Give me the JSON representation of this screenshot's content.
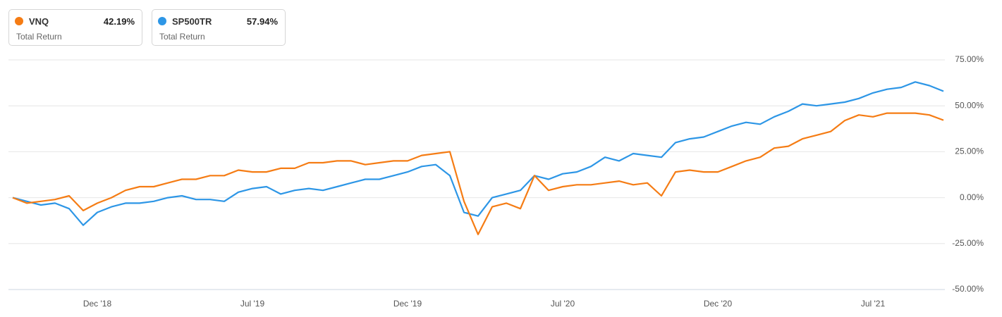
{
  "chart_data": {
    "type": "line",
    "categories": [
      null,
      null,
      null,
      null,
      null,
      null,
      "Dec '18",
      null,
      null,
      null,
      null,
      null,
      null,
      null,
      null,
      null,
      null,
      "Jul '19",
      null,
      null,
      null,
      null,
      null,
      null,
      null,
      null,
      null,
      null,
      "Dec '19",
      null,
      null,
      null,
      null,
      null,
      null,
      null,
      null,
      null,
      null,
      "Jul '20",
      null,
      null,
      null,
      null,
      null,
      null,
      null,
      null,
      null,
      null,
      "Dec '20",
      null,
      null,
      null,
      null,
      null,
      null,
      null,
      null,
      null,
      null,
      "Jul '21",
      null,
      null,
      null,
      null,
      null
    ],
    "series": [
      {
        "name": "VNQ",
        "color": "#f57c14",
        "legend_caption": "Total Return",
        "legend_value": {
          "value": 42.19,
          "label": "42.19%"
        },
        "values": [
          0,
          -3,
          -2,
          -1,
          1,
          -7,
          -3,
          0,
          4,
          6,
          6,
          8,
          10,
          10,
          12,
          12,
          15,
          14,
          14,
          16,
          16,
          19,
          19,
          20,
          20,
          18,
          19,
          20,
          20,
          23,
          24,
          25,
          -2,
          -20,
          -5,
          -3,
          -6,
          12,
          4,
          6,
          7,
          7,
          8,
          9,
          7,
          8,
          1,
          14,
          15,
          14,
          14,
          17,
          20,
          22,
          27,
          28,
          32,
          34,
          36,
          42,
          45,
          44,
          46,
          46,
          46,
          45,
          42.19
        ]
      },
      {
        "name": "SP500TR",
        "color": "#2d96e6",
        "legend_caption": "Total Return",
        "legend_value": {
          "value": 57.94,
          "label": "57.94%"
        },
        "values": [
          0,
          -2,
          -4,
          -3,
          -6,
          -15,
          -8,
          -5,
          -3,
          -3,
          -2,
          0,
          1,
          -1,
          -1,
          -2,
          3,
          5,
          6,
          2,
          4,
          5,
          4,
          6,
          8,
          10,
          10,
          12,
          14,
          17,
          18,
          12,
          -8,
          -10,
          0,
          2,
          4,
          12,
          10,
          13,
          14,
          17,
          22,
          20,
          24,
          23,
          22,
          30,
          32,
          33,
          36,
          39,
          41,
          40,
          44,
          47,
          51,
          50,
          51,
          52,
          54,
          57,
          59,
          60,
          63,
          61,
          57.94
        ]
      }
    ],
    "ylim": [
      -50,
      75
    ],
    "yticks": [
      {
        "value": -50,
        "label": "-50.00%"
      },
      {
        "value": -25,
        "label": "-25.00%"
      },
      {
        "value": 0,
        "label": "0.00%"
      },
      {
        "value": 25,
        "label": "25.00%"
      },
      {
        "value": 50,
        "label": "50.00%"
      },
      {
        "value": 75,
        "label": "75.00%"
      }
    ],
    "grid": true
  }
}
